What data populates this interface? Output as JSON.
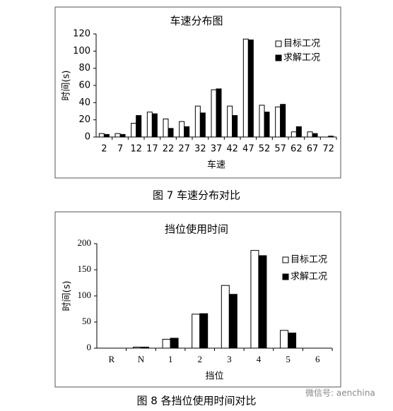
{
  "chart_data": [
    {
      "type": "bar",
      "title": "车速分布图",
      "x_label": "车速",
      "y_label": "时间(s)",
      "categories": [
        "2",
        "7",
        "12",
        "17",
        "22",
        "27",
        "32",
        "37",
        "42",
        "47",
        "52",
        "57",
        "62",
        "67",
        "72"
      ],
      "series": [
        {
          "name": "目标工况",
          "color": "#ffffff",
          "values": [
            4,
            4,
            16,
            29,
            21,
            18,
            36,
            55,
            36,
            114,
            37,
            35,
            6,
            6,
            0
          ]
        },
        {
          "name": "求解工况",
          "color": "#000000",
          "values": [
            3,
            3,
            25,
            27,
            10,
            12,
            28,
            56,
            25,
            113,
            29,
            38,
            12,
            4,
            1
          ]
        }
      ],
      "ylim": [
        0,
        120
      ],
      "yticks": [
        0,
        20,
        40,
        60,
        80,
        100,
        120
      ],
      "legend": "top-right"
    },
    {
      "type": "bar",
      "title": "挡位使用时间",
      "x_label": "挡位",
      "y_label": "时间(s)",
      "categories": [
        "R",
        "N",
        "1",
        "2",
        "3",
        "4",
        "5",
        "6"
      ],
      "series": [
        {
          "name": "目标工况",
          "color": "#ffffff",
          "values": [
            0,
            2,
            17,
            65,
            120,
            187,
            34,
            0
          ]
        },
        {
          "name": "求解工况",
          "color": "#000000",
          "values": [
            0,
            2,
            19,
            66,
            103,
            177,
            29,
            0
          ]
        }
      ],
      "ylim": [
        0,
        200
      ],
      "yticks": [
        0,
        50,
        100,
        150,
        200
      ],
      "legend": "top-right"
    }
  ],
  "captions": [
    "图 7  车速分布对比",
    "图 8  各挡位使用时间对比"
  ],
  "watermark": "微信号: aenchina"
}
